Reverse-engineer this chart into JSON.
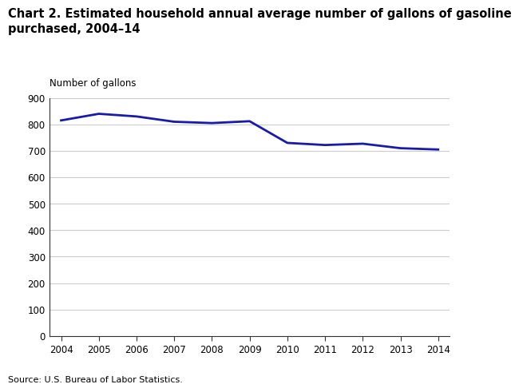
{
  "title_line1": "Chart 2. Estimated household annual average number of gallons of gasoline",
  "title_line2": "purchased, 2004–14",
  "ylabel": "Number of gallons",
  "source": "Source: U.S. Bureau of Labor Statistics.",
  "years": [
    2004,
    2005,
    2006,
    2007,
    2008,
    2009,
    2010,
    2011,
    2012,
    2013,
    2014
  ],
  "values": [
    815,
    840,
    830,
    810,
    805,
    812,
    730,
    722,
    727,
    710,
    705
  ],
  "line_color": "#1a1aaa",
  "line_width": 2.0,
  "ylim": [
    0,
    900
  ],
  "yticks": [
    0,
    100,
    200,
    300,
    400,
    500,
    600,
    700,
    800,
    900
  ],
  "xticks": [
    2004,
    2005,
    2006,
    2007,
    2008,
    2009,
    2010,
    2011,
    2012,
    2013,
    2014
  ],
  "background_color": "#ffffff",
  "grid_color": "#cccccc",
  "title_fontsize": 10.5,
  "label_fontsize": 8.5,
  "tick_fontsize": 8.5,
  "source_fontsize": 8.0
}
